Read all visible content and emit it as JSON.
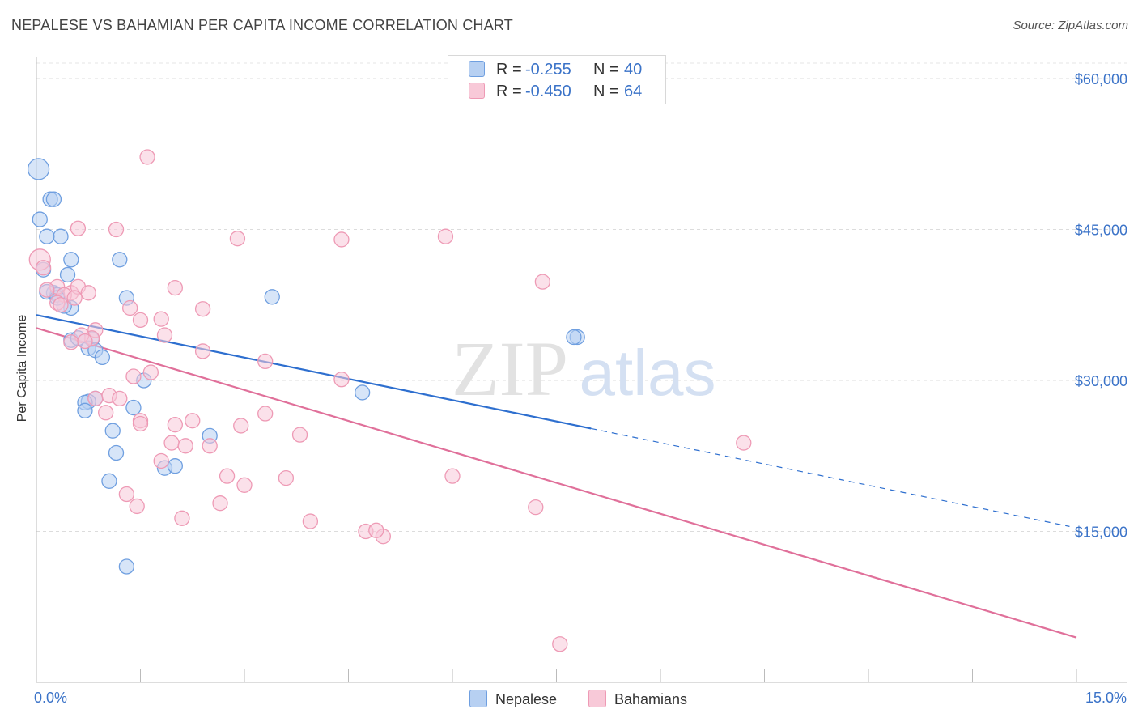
{
  "chart_data": {
    "type": "scatter",
    "title": "NEPALESE VS BAHAMIAN PER CAPITA INCOME CORRELATION CHART",
    "source": "Source: ZipAtlas.com",
    "xlabel": "",
    "ylabel": "Per Capita Income",
    "xlim": [
      0.0,
      15.0
    ],
    "ylim": [
      0,
      63000
    ],
    "x_tick_labels": {
      "min": "0.0%",
      "max": "15.0%"
    },
    "y_ticks": [
      {
        "value": 15000,
        "label": "$15,000"
      },
      {
        "value": 30000,
        "label": "$30,000"
      },
      {
        "value": 45000,
        "label": "$45,000"
      },
      {
        "value": 60000,
        "label": "$60,000"
      }
    ],
    "grid": true,
    "watermark": {
      "part1": "ZIP",
      "part2": "atlas"
    },
    "legend": {
      "r_label": "R =",
      "n_label": "N =",
      "entries": [
        {
          "name": "Nepalese",
          "r": "-0.255",
          "n": "40"
        },
        {
          "name": "Bahamians",
          "r": "-0.450",
          "n": "64"
        }
      ]
    },
    "series": [
      {
        "name": "Nepalese",
        "color": "#6f9fe0",
        "fill": "#b7d0f2",
        "line_color": "#2e6fcf",
        "trend": {
          "x0": 0.0,
          "y0": 36500,
          "x_solid_end": 8.0,
          "x_end": 14.9,
          "slope": -1410
        },
        "points": [
          [
            0.03,
            51000
          ],
          [
            0.05,
            46000
          ],
          [
            0.2,
            48000
          ],
          [
            0.25,
            48000
          ],
          [
            0.35,
            44300
          ],
          [
            0.15,
            44300
          ],
          [
            0.5,
            42000
          ],
          [
            1.2,
            42000
          ],
          [
            0.1,
            41000
          ],
          [
            0.45,
            40500
          ],
          [
            0.25,
            38700
          ],
          [
            0.3,
            38500
          ],
          [
            0.5,
            37200
          ],
          [
            0.4,
            37400
          ],
          [
            1.3,
            38200
          ],
          [
            3.4,
            38300
          ],
          [
            0.5,
            34000
          ],
          [
            0.6,
            34200
          ],
          [
            0.8,
            34100
          ],
          [
            0.75,
            33200
          ],
          [
            0.85,
            33000
          ],
          [
            0.95,
            32300
          ],
          [
            7.8,
            34300
          ],
          [
            7.75,
            34300
          ],
          [
            1.55,
            30000
          ],
          [
            4.7,
            28800
          ],
          [
            0.85,
            28200
          ],
          [
            0.75,
            27900
          ],
          [
            0.7,
            27800
          ],
          [
            0.7,
            27000
          ],
          [
            1.4,
            27300
          ],
          [
            1.1,
            25000
          ],
          [
            2.5,
            24500
          ],
          [
            1.15,
            22800
          ],
          [
            1.85,
            21300
          ],
          [
            2.0,
            21500
          ],
          [
            1.05,
            20000
          ],
          [
            1.3,
            11500
          ],
          [
            0.15,
            38800
          ],
          [
            0.3,
            38200
          ]
        ]
      },
      {
        "name": "Bahamians",
        "color": "#ee9ab5",
        "fill": "#f8c9d8",
        "line_color": "#e0709a",
        "trend": {
          "x0": 0.0,
          "y0": 35200,
          "x_end": 15.0,
          "slope": -2050
        },
        "points": [
          [
            0.05,
            42000
          ],
          [
            0.1,
            41200
          ],
          [
            0.3,
            39300
          ],
          [
            0.15,
            39000
          ],
          [
            0.5,
            38700
          ],
          [
            0.4,
            38500
          ],
          [
            0.6,
            39300
          ],
          [
            0.3,
            37700
          ],
          [
            0.75,
            38700
          ],
          [
            0.35,
            37500
          ],
          [
            1.6,
            52200
          ],
          [
            0.6,
            45100
          ],
          [
            1.15,
            45000
          ],
          [
            2.9,
            44100
          ],
          [
            4.4,
            44000
          ],
          [
            5.9,
            44300
          ],
          [
            7.3,
            39800
          ],
          [
            2.0,
            39200
          ],
          [
            2.4,
            37100
          ],
          [
            1.35,
            37200
          ],
          [
            1.5,
            36000
          ],
          [
            1.8,
            36100
          ],
          [
            0.85,
            35000
          ],
          [
            0.8,
            34200
          ],
          [
            0.65,
            34500
          ],
          [
            0.5,
            33800
          ],
          [
            0.7,
            33900
          ],
          [
            1.85,
            34500
          ],
          [
            2.4,
            32900
          ],
          [
            3.3,
            31900
          ],
          [
            1.4,
            30400
          ],
          [
            1.65,
            30800
          ],
          [
            4.4,
            30100
          ],
          [
            0.85,
            28200
          ],
          [
            1.05,
            28500
          ],
          [
            1.2,
            28200
          ],
          [
            1.0,
            26800
          ],
          [
            3.3,
            26700
          ],
          [
            2.25,
            26000
          ],
          [
            1.5,
            26000
          ],
          [
            1.5,
            25700
          ],
          [
            2.0,
            25600
          ],
          [
            2.95,
            25500
          ],
          [
            3.8,
            24600
          ],
          [
            1.95,
            23800
          ],
          [
            2.15,
            23500
          ],
          [
            2.5,
            23500
          ],
          [
            10.2,
            23800
          ],
          [
            1.8,
            22000
          ],
          [
            2.75,
            20500
          ],
          [
            3.6,
            20300
          ],
          [
            6.0,
            20500
          ],
          [
            3.0,
            19600
          ],
          [
            1.3,
            18700
          ],
          [
            2.65,
            17800
          ],
          [
            1.45,
            17500
          ],
          [
            2.1,
            16300
          ],
          [
            3.95,
            16000
          ],
          [
            7.2,
            17400
          ],
          [
            4.75,
            15000
          ],
          [
            5.0,
            14500
          ],
          [
            4.9,
            15100
          ],
          [
            7.55,
            3800
          ],
          [
            0.55,
            38200
          ]
        ]
      }
    ]
  }
}
